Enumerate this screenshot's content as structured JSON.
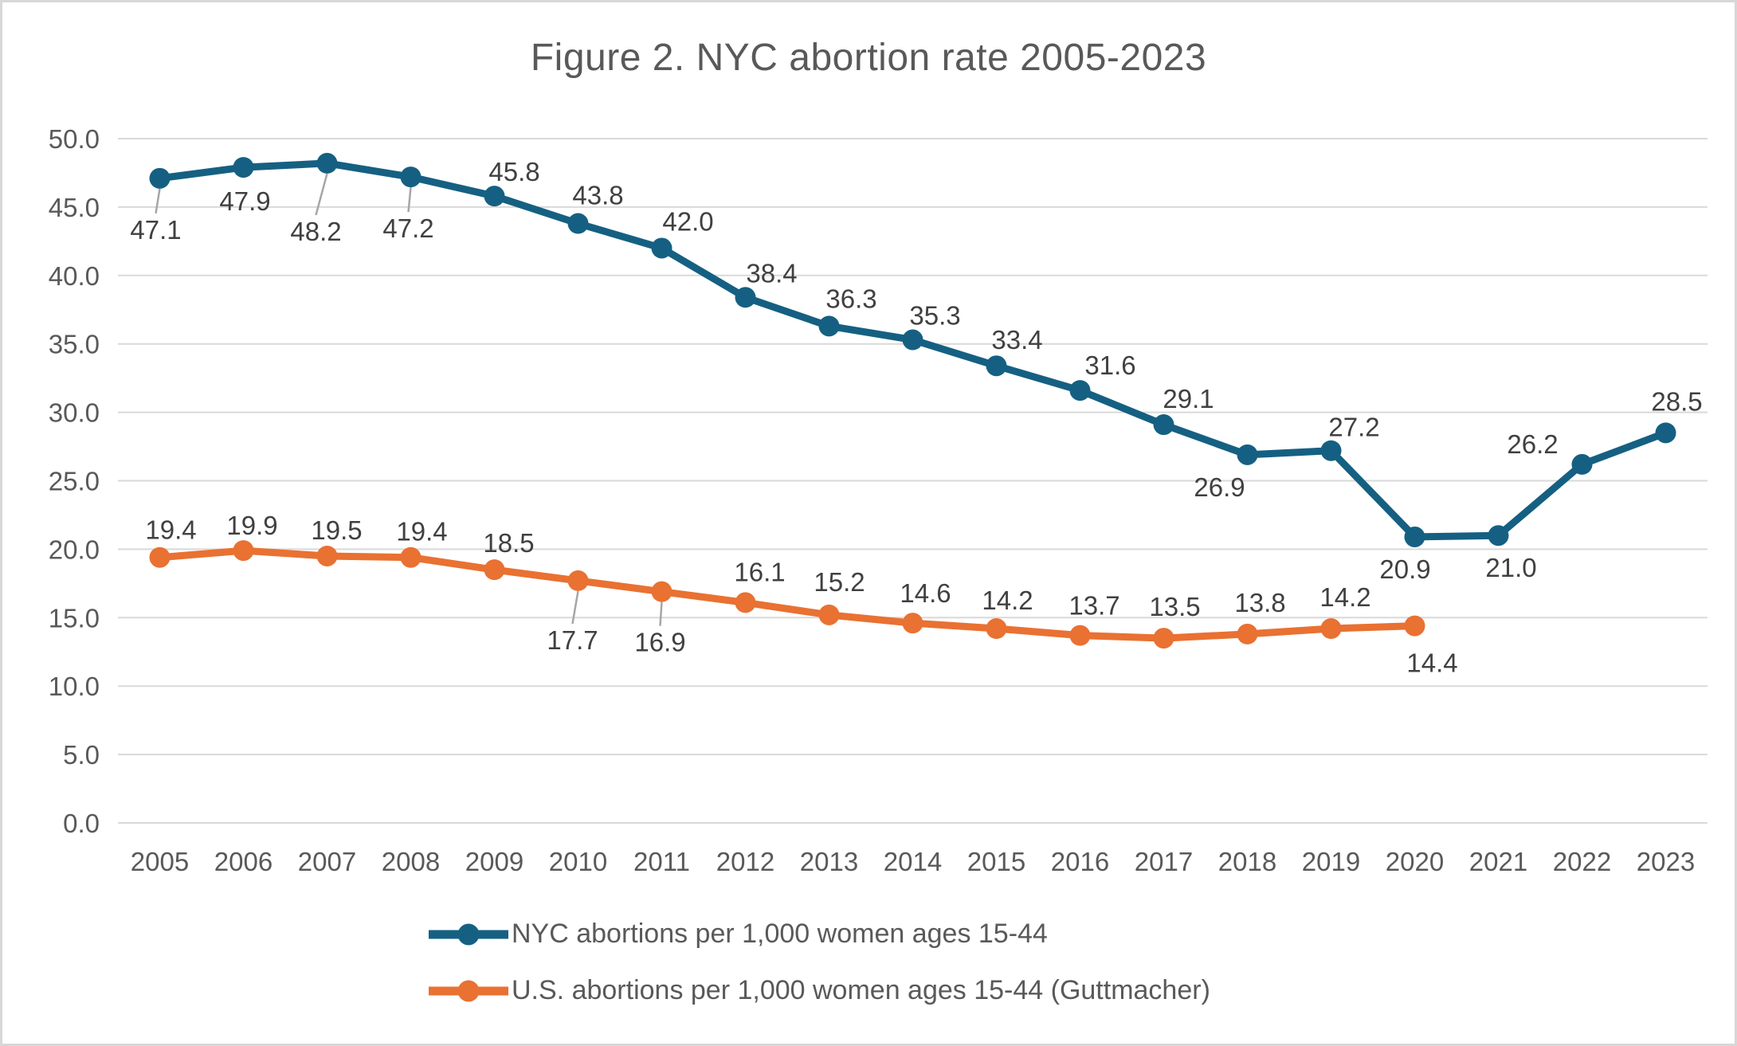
{
  "frame": {
    "background": "#ffffff",
    "border_color": "#d7d7d7"
  },
  "chart_data": {
    "type": "line",
    "title": "Figure 2. NYC abortion rate 2005-2023",
    "categories": [
      "2005",
      "2006",
      "2007",
      "2008",
      "2009",
      "2010",
      "2011",
      "2012",
      "2013",
      "2014",
      "2015",
      "2016",
      "2017",
      "2018",
      "2019",
      "2020",
      "2021",
      "2022",
      "2023"
    ],
    "series": [
      {
        "name": "NYC abortions per 1,000 women ages 15-44",
        "color": "#156082",
        "values": [
          47.1,
          47.9,
          48.2,
          47.2,
          45.8,
          43.8,
          42.0,
          38.4,
          36.3,
          35.3,
          33.4,
          31.6,
          29.1,
          26.9,
          27.2,
          20.9,
          21.0,
          26.2,
          28.5
        ],
        "labels": [
          {
            "t": "47.1",
            "dx": -5,
            "dy": 64,
            "ld": true
          },
          {
            "t": "47.9",
            "dx": 2,
            "dy": 42
          },
          {
            "t": "48.2",
            "dx": -14,
            "dy": 85,
            "ld": true
          },
          {
            "t": "47.2",
            "dx": -3,
            "dy": 64,
            "ld": true
          },
          {
            "t": "45.8",
            "dx": 25,
            "dy": -31
          },
          {
            "t": "43.8",
            "dx": 25,
            "dy": -36
          },
          {
            "t": "42.0",
            "dx": 33,
            "dy": -34
          },
          {
            "t": "38.4",
            "dx": 33,
            "dy": -31
          },
          {
            "t": "36.3",
            "dx": 28,
            "dy": -35
          },
          {
            "t": "35.3",
            "dx": 28,
            "dy": -31
          },
          {
            "t": "33.4",
            "dx": 26,
            "dy": -33
          },
          {
            "t": "31.6",
            "dx": 38,
            "dy": -32
          },
          {
            "t": "29.1",
            "dx": 31,
            "dy": -33
          },
          {
            "t": "26.9",
            "dx": -35,
            "dy": 40
          },
          {
            "t": "27.2",
            "dx": 29,
            "dy": -30
          },
          {
            "t": "20.9",
            "dx": -12,
            "dy": 40
          },
          {
            "t": "21.0",
            "dx": 16,
            "dy": 40
          },
          {
            "t": "26.2",
            "dx": -62,
            "dy": -26
          },
          {
            "t": "28.5",
            "dx": 14,
            "dy": -40
          }
        ]
      },
      {
        "name": "U.S. abortions per 1,000 women ages 15-44 (Guttmacher)",
        "color": "#E97132",
        "values": [
          19.4,
          19.9,
          19.5,
          19.4,
          18.5,
          17.7,
          16.9,
          16.1,
          15.2,
          14.6,
          14.2,
          13.7,
          13.5,
          13.8,
          14.2,
          14.4,
          null,
          null,
          null
        ],
        "labels": [
          {
            "t": "19.4",
            "dx": 14,
            "dy": -35
          },
          {
            "t": "19.9",
            "dx": 11,
            "dy": -32
          },
          {
            "t": "19.5",
            "dx": 12,
            "dy": -33
          },
          {
            "t": "19.4",
            "dx": 14,
            "dy": -33
          },
          {
            "t": "18.5",
            "dx": 18,
            "dy": -34
          },
          {
            "t": "17.7",
            "dx": -7,
            "dy": 74,
            "ld": true
          },
          {
            "t": "16.9",
            "dx": -2,
            "dy": 63,
            "ld": true
          },
          {
            "t": "16.1",
            "dx": 18,
            "dy": -39
          },
          {
            "t": "15.2",
            "dx": 13,
            "dy": -42
          },
          {
            "t": "14.6",
            "dx": 16,
            "dy": -38
          },
          {
            "t": "14.2",
            "dx": 14,
            "dy": -36
          },
          {
            "t": "13.7",
            "dx": 18,
            "dy": -38
          },
          {
            "t": "13.5",
            "dx": 14,
            "dy": -40
          },
          {
            "t": "13.8",
            "dx": 16,
            "dy": -40
          },
          {
            "t": "14.2",
            "dx": 18,
            "dy": -40
          },
          {
            "t": "14.4",
            "dx": 22,
            "dy": 46
          }
        ]
      }
    ],
    "xlabel": "",
    "ylabel": "",
    "ylim": [
      0,
      50
    ],
    "ytick_step": 5,
    "ytick_labels": [
      "0.0",
      "5.0",
      "10.0",
      "15.0",
      "20.0",
      "25.0",
      "30.0",
      "35.0",
      "40.0",
      "45.0",
      "50.0"
    ],
    "grid": "horizontal",
    "legend_position": "bottom-left",
    "colors": {
      "axis_text": "#595959",
      "title_text": "#595959",
      "data_label_text": "#404040",
      "gridline": "#d9d9d9",
      "leader_line": "#a6a6a6",
      "legend_text": "#595959"
    }
  }
}
